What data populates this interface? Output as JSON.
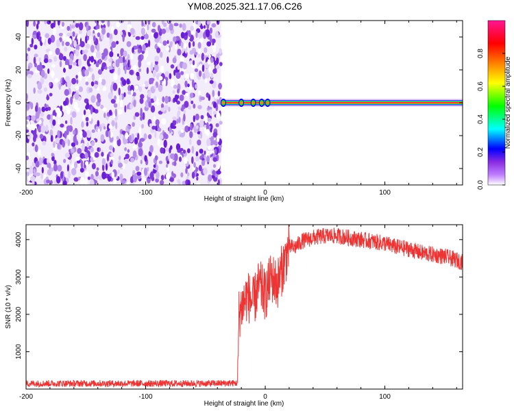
{
  "title": "YM08.2025.321.17.06.C26",
  "chart_data": [
    {
      "type": "heatmap",
      "xlabel": "Height of straight line (km)",
      "ylabel": "Frequency (Hz)",
      "xlim": [
        -200,
        165
      ],
      "ylim": [
        -50,
        50
      ],
      "x_ticks": [
        -200,
        -100,
        0,
        100
      ],
      "x_tick_labels": [
        "-200",
        "-100",
        "0",
        "100"
      ],
      "y_ticks": [
        -40,
        -20,
        0,
        20,
        40
      ],
      "y_tick_labels": [
        "-40",
        "-20",
        "0",
        "20",
        "40"
      ],
      "colorbar": {
        "label": "Normalized spectral amplitude",
        "range": [
          0,
          1
        ],
        "ticks": [
          0.0,
          0.2,
          0.4,
          0.6,
          0.8
        ],
        "tick_labels": [
          "0.0",
          "0.2",
          "0.4",
          "0.6",
          "0.8"
        ],
        "colors": [
          "#ffffff",
          "#8a2be2",
          "#0000ff",
          "#00ffff",
          "#00ff00",
          "#ffff00",
          "#ff8000",
          "#ff0000",
          "#ff1493"
        ]
      },
      "noise_region": {
        "x_start": -200,
        "x_end": -37
      },
      "signal_line": {
        "x_start": -37,
        "x_end": 165,
        "frequency": 0
      }
    },
    {
      "type": "line",
      "xlabel": "Height of straight line (km)",
      "ylabel": "SNR (10 * v/v)",
      "xlim": [
        -200,
        165
      ],
      "ylim": [
        0,
        4400
      ],
      "x_ticks": [
        -200,
        -100,
        0,
        100
      ],
      "x_tick_labels": [
        "-200",
        "-100",
        "0",
        "100"
      ],
      "y_ticks": [
        1000,
        2000,
        3000,
        4000
      ],
      "y_tick_labels": [
        "1000",
        "2000",
        "3000",
        "4000"
      ],
      "series": [
        {
          "color": "#ee3333",
          "x": [
            -200,
            -150,
            -100,
            -50,
            -23,
            -22,
            -20,
            -15,
            -10,
            -5,
            0,
            5,
            10,
            15,
            20,
            25,
            30,
            40,
            50,
            60,
            70,
            80,
            90,
            100,
            110,
            120,
            130,
            140,
            150,
            160,
            165
          ],
          "y": [
            150,
            150,
            150,
            150,
            160,
            2000,
            2200,
            2500,
            2300,
            2800,
            2500,
            3000,
            2800,
            3300,
            3800,
            3800,
            3950,
            4050,
            4100,
            4100,
            4050,
            4000,
            3950,
            3900,
            3800,
            3750,
            3650,
            3600,
            3550,
            3450,
            3400
          ]
        }
      ]
    }
  ]
}
